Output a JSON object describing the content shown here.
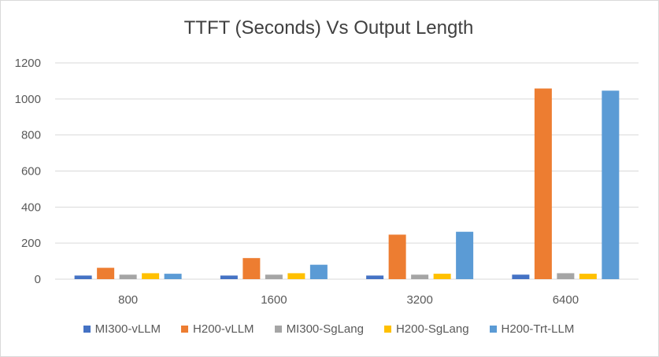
{
  "chart_data": {
    "type": "bar",
    "title": "TTFT (Seconds) Vs Output Length",
    "xlabel": "",
    "ylabel": "",
    "categories": [
      "800",
      "1600",
      "3200",
      "6400"
    ],
    "ylim": [
      0,
      1200
    ],
    "yticks": [
      "0",
      "200",
      "400",
      "600",
      "800",
      "1000",
      "1200"
    ],
    "grid": true,
    "legend_position": "bottom",
    "series": [
      {
        "name": "MI300-vLLM",
        "color": "#4472c4",
        "values": [
          20,
          20,
          20,
          25
        ]
      },
      {
        "name": "H200-vLLM",
        "color": "#ed7d31",
        "values": [
          63,
          117,
          247,
          1058
        ]
      },
      {
        "name": "MI300-SgLang",
        "color": "#a5a5a5",
        "values": [
          25,
          25,
          25,
          33
        ]
      },
      {
        "name": "H200-SgLang",
        "color": "#ffc000",
        "values": [
          33,
          33,
          30,
          30
        ]
      },
      {
        "name": "H200-Trt-LLM",
        "color": "#5b9bd5",
        "values": [
          30,
          80,
          263,
          1046
        ]
      }
    ]
  }
}
